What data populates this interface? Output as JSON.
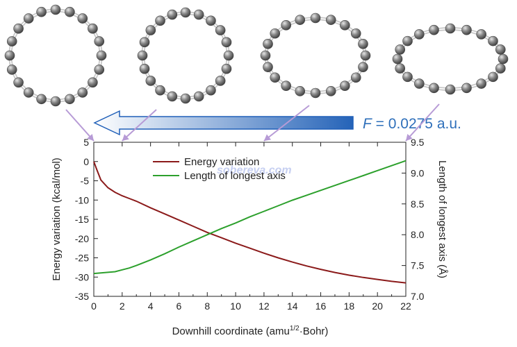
{
  "field_label": {
    "symbol": "F",
    "text": " = 0.0275 a.u.",
    "color": "#2e6fba"
  },
  "watermark": "sobereva.com",
  "atom_color": "#8a8a8a",
  "bond_color": "#c8c8c8",
  "arrow_color": "#1f5fb8",
  "pointer_color": "#b79bd6",
  "chart_data": {
    "type": "line",
    "xlabel": "Downhill coordinate (amu",
    "xlabel_sup": "1/2",
    "xlabel_tail": "·Bohr)",
    "ylabel": "Energy variation (kcal/mol)",
    "y2label": "Length of longest axis (Å)",
    "xlim": [
      0,
      22
    ],
    "ylim": [
      -35,
      5
    ],
    "y2lim": [
      7.0,
      9.5
    ],
    "x_ticks": [
      "0",
      "2",
      "4",
      "6",
      "8",
      "10",
      "12",
      "14",
      "16",
      "18",
      "20",
      "22"
    ],
    "y_ticks": [
      "5",
      "0",
      "-5",
      "-10",
      "-15",
      "-20",
      "-25",
      "-30",
      "-35"
    ],
    "y2_ticks": [
      "9.5",
      "9.0",
      "8.5",
      "8.0",
      "7.5",
      "7.0"
    ],
    "grid": false,
    "legend_position": "top-center",
    "series": [
      {
        "name": "Energy variation",
        "axis": "left",
        "color": "#8b1a1a",
        "x": [
          0,
          0.2,
          0.5,
          1,
          1.5,
          2,
          2.5,
          3,
          4,
          5,
          6,
          7,
          8,
          9,
          10,
          11,
          12,
          13,
          14,
          15,
          16,
          17,
          18,
          19,
          20,
          21,
          22
        ],
        "y": [
          0,
          -2,
          -4.8,
          -6.8,
          -8.0,
          -8.9,
          -9.6,
          -10.3,
          -12.0,
          -13.6,
          -15.2,
          -16.8,
          -18.4,
          -19.8,
          -21.2,
          -22.5,
          -23.8,
          -25.0,
          -26.1,
          -27.1,
          -28.0,
          -28.8,
          -29.5,
          -30.1,
          -30.6,
          -31.1,
          -31.5
        ]
      },
      {
        "name": "Length of longest axis",
        "axis": "right",
        "color": "#2ca02c",
        "x": [
          0,
          0.5,
          1,
          1.5,
          2,
          2.5,
          3,
          4,
          5,
          6,
          7,
          8,
          9,
          10,
          11,
          12,
          13,
          14,
          15,
          16,
          17,
          18,
          19,
          20,
          21,
          22
        ],
        "y": [
          7.37,
          7.38,
          7.39,
          7.4,
          7.43,
          7.46,
          7.5,
          7.59,
          7.69,
          7.8,
          7.9,
          8.0,
          8.1,
          8.19,
          8.29,
          8.38,
          8.47,
          8.56,
          8.64,
          8.72,
          8.8,
          8.88,
          8.96,
          9.04,
          9.12,
          9.2
        ]
      }
    ]
  }
}
